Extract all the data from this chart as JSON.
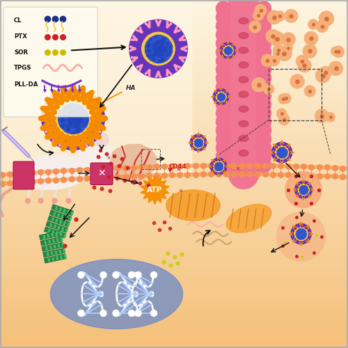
{
  "bg_top_color": "#fdf3dc",
  "bg_bottom_color": "#f5c88a",
  "legend_labels": [
    "CL",
    "PTX",
    "SOR",
    "TPGS",
    "PLL-DA"
  ],
  "legend_colors": [
    "#1a3a8a",
    "#cc2222",
    "#ccbb00",
    "#ff99aa",
    "#7733cc"
  ],
  "lipo_core": "#3355cc",
  "lipo_yellow": "#f5c842",
  "lipo_red": "#cc2233",
  "lipo_purple": "#6633bb",
  "lipo_pink": "#ff99bb",
  "lipo_orange_spike": "#f58c00",
  "vessel_color": "#f07090",
  "cell_color": "#f5a870",
  "cancer_cell_fill": "#f5b080",
  "cancer_cell_edge": "#e08050",
  "nucleus_fill": "#5577cc",
  "nucleus_edge": "#3355aa",
  "mito_fill": "#f5a830",
  "mito_edge": "#d07800",
  "pgp_color": "#cc3366",
  "atp_color": "#f58c00",
  "ptx_green": "#228844",
  "ptx_light": "#44aa66",
  "ptx_red_dot": "#cc2222",
  "sor_yellow": "#cccc22",
  "arrow_color": "#111111",
  "membrane_color": "#f4904a",
  "membrane_head": "#f4904a",
  "dna_white": "#ffffff",
  "tpgs_wave_color": "#cc9966",
  "sor_dot_color": "#ccbb00"
}
